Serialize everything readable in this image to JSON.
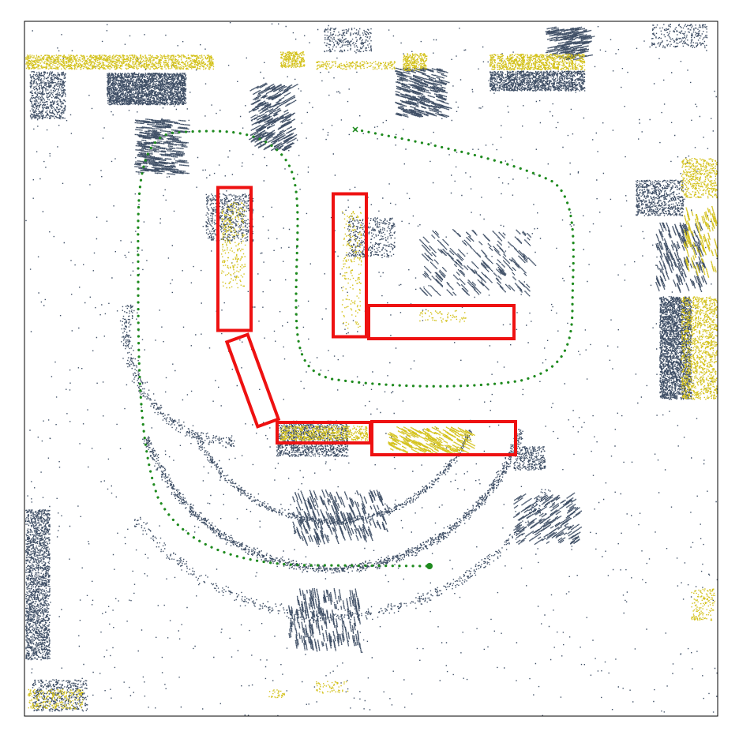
{
  "colors": {
    "background": "#ffffff",
    "frame": "#000000",
    "point_dark": "#3f4f66",
    "point_yellow": "#d4c21c",
    "trajectory": "#1e8a1e",
    "box": "#ee1111"
  },
  "legend": [],
  "trajectory": {
    "start_marker": "cross",
    "end_marker": "filled-circle"
  }
}
